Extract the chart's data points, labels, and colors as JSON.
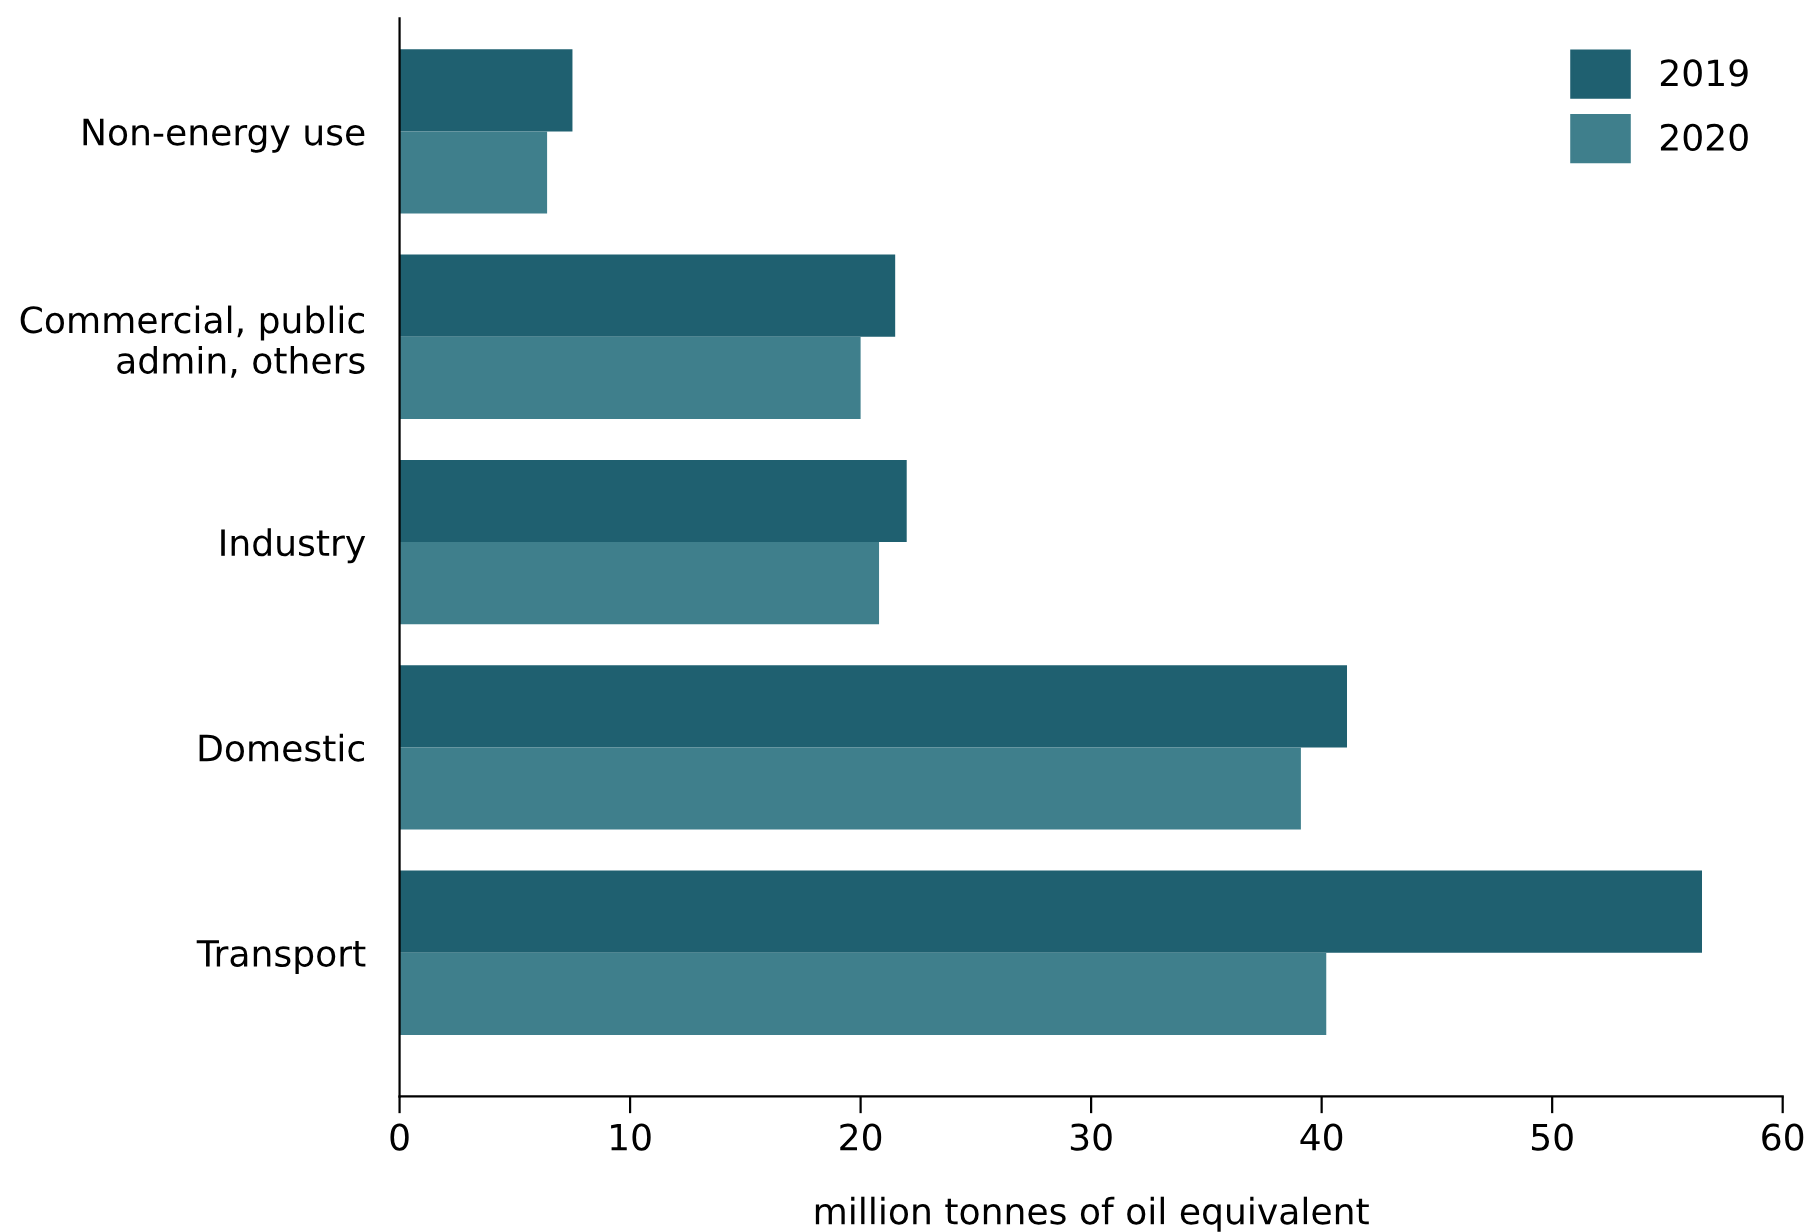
{
  "chart_data": {
    "type": "bar",
    "orientation": "horizontal",
    "categories": [
      "Non-energy use",
      "Commercial, public\nadmin, others",
      "Industry",
      "Domestic",
      "Transport"
    ],
    "series": [
      {
        "name": "2019",
        "color": "#1f6070",
        "values": [
          7.5,
          21.5,
          22.0,
          41.1,
          56.5
        ]
      },
      {
        "name": "2020",
        "color": "#3f7f8c",
        "values": [
          6.4,
          20.0,
          20.8,
          39.1,
          40.2
        ]
      }
    ],
    "xlim": [
      0,
      60
    ],
    "xticks": [
      0,
      10,
      20,
      30,
      40,
      50,
      60
    ],
    "xlabel": "million tonnes of oil equivalent",
    "grid": false,
    "legend": "top right"
  }
}
